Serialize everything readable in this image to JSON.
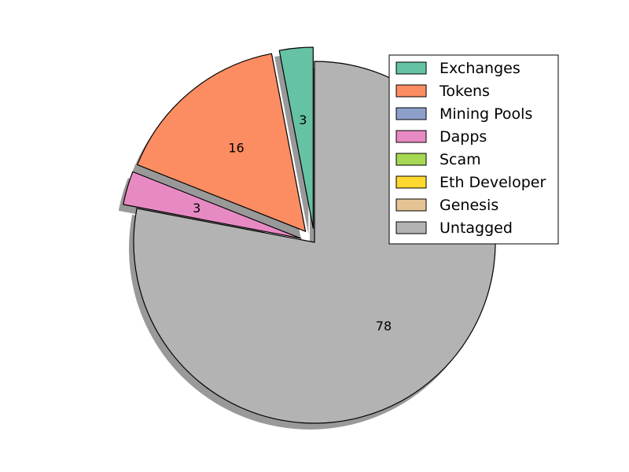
{
  "chart_data": {
    "type": "pie",
    "title": "",
    "legend_placement": "top-right",
    "series": [
      {
        "name": "Exchanges",
        "value": 3,
        "label": "3",
        "color": "#66c2a5",
        "exploded": true
      },
      {
        "name": "Tokens",
        "value": 16,
        "label": "16",
        "color": "#fc8d62",
        "exploded": true
      },
      {
        "name": "Mining Pools",
        "value": 0,
        "label": "",
        "color": "#8da0cb",
        "exploded": false
      },
      {
        "name": "Dapps",
        "value": 3,
        "label": "3",
        "color": "#e78ac3",
        "exploded": true
      },
      {
        "name": "Scam",
        "value": 0,
        "label": "",
        "color": "#a6d854",
        "exploded": false
      },
      {
        "name": "Eth Developer",
        "value": 0,
        "label": "",
        "color": "#ffd92f",
        "exploded": false
      },
      {
        "name": "Genesis",
        "value": 0,
        "label": "",
        "color": "#e5c494",
        "exploded": false
      },
      {
        "name": "Untagged",
        "value": 78,
        "label": "78",
        "color": "#b3b3b3",
        "exploded": false
      }
    ],
    "shadow": true
  }
}
